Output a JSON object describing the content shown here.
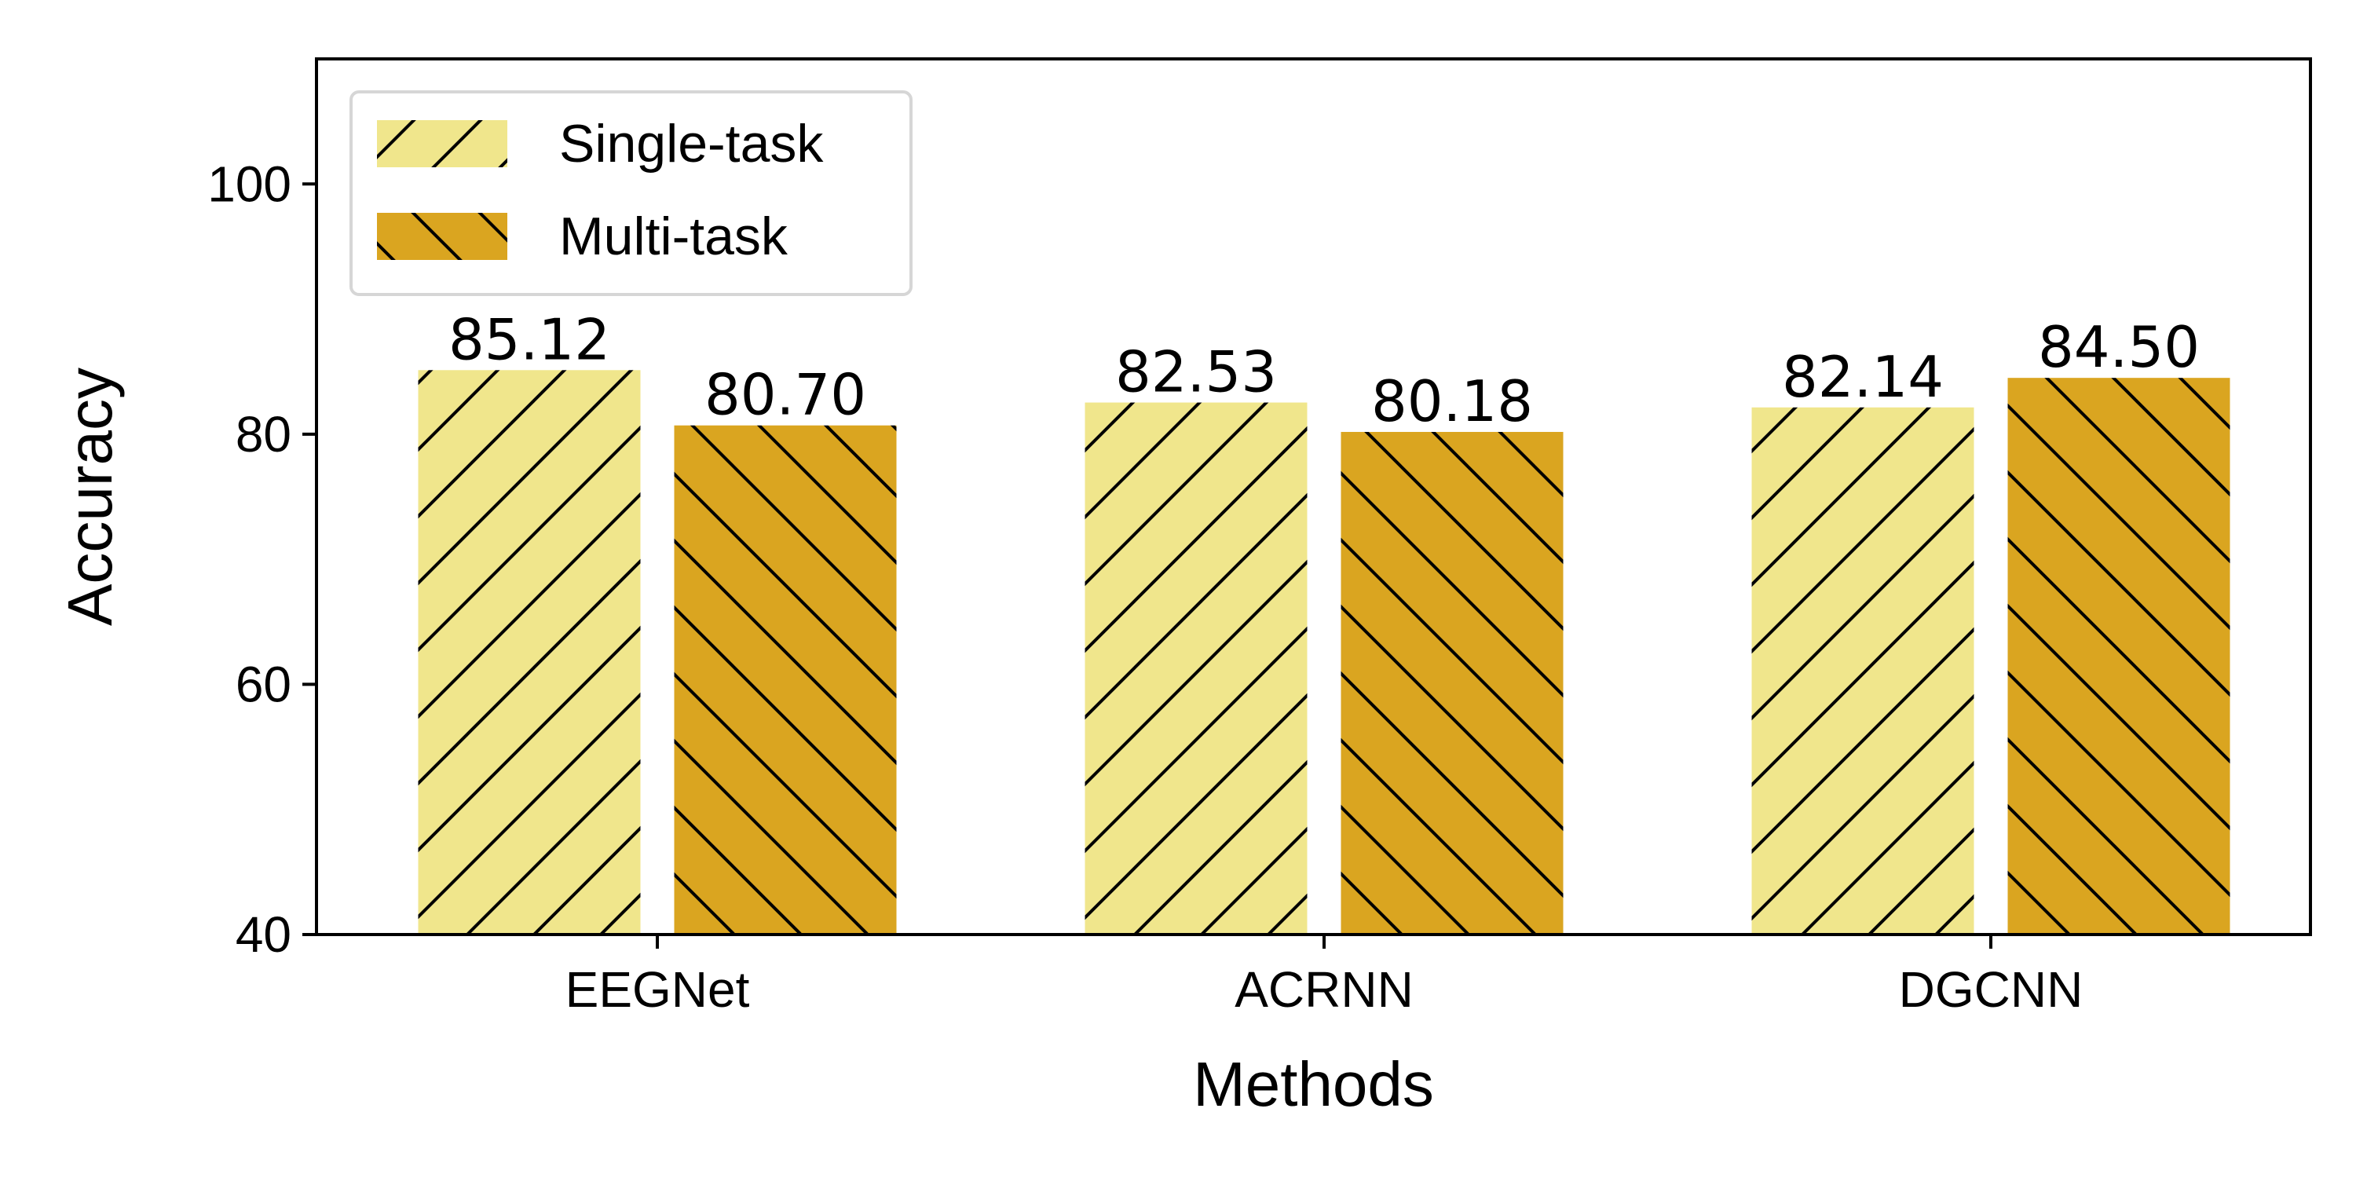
{
  "chart_data": {
    "type": "bar",
    "categories": [
      "EEGNet",
      "ACRNN",
      "DGCNN"
    ],
    "series": [
      {
        "name": "Single-task",
        "values": [
          85.12,
          82.53,
          82.14
        ],
        "labels": [
          "85.12",
          "82.53",
          "82.14"
        ],
        "color": "#F0E68C",
        "hatch": "forward-diagonal"
      },
      {
        "name": "Multi-task",
        "values": [
          80.7,
          80.18,
          84.5
        ],
        "labels": [
          "80.70",
          "80.18",
          "84.50"
        ],
        "color": "#DAA520",
        "hatch": "backward-diagonal"
      }
    ],
    "xlabel": "Methods",
    "ylabel": "Accuracy",
    "ylim": [
      40,
      110
    ],
    "yticks": [
      40,
      60,
      80,
      100
    ],
    "ytick_labels": [
      "40",
      "60",
      "80",
      "100"
    ],
    "grid": false,
    "legend_position": "top-left"
  }
}
